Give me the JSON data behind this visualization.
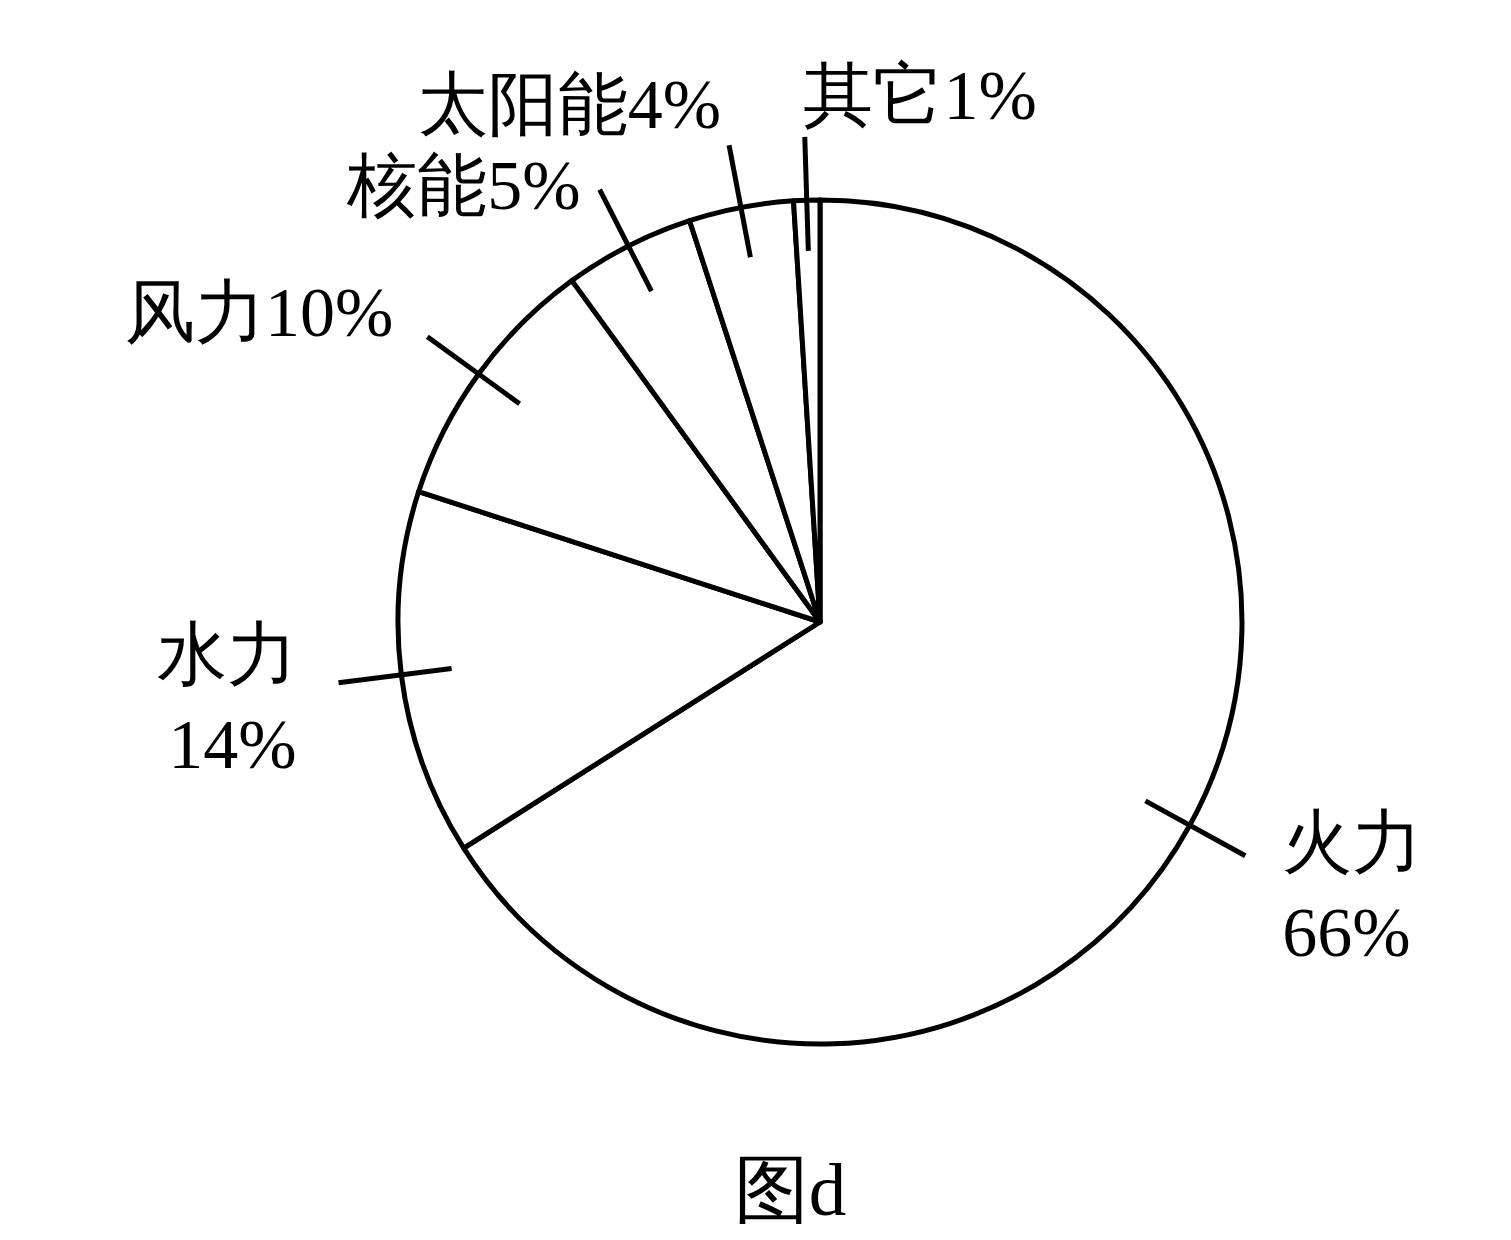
{
  "chart_data": {
    "type": "pie",
    "categories": [
      "火力",
      "水力",
      "风力",
      "核能",
      "太阳能",
      "其它"
    ],
    "values": [
      66,
      14,
      10,
      5,
      4,
      1
    ],
    "value_labels": [
      "66%",
      "14%",
      "10%",
      "5%",
      "4%",
      "1%"
    ],
    "colors": [
      "#ffffff",
      "#ffffff",
      "#ffffff",
      "#ffffff",
      "#ffffff",
      "#ffffff"
    ],
    "annotations": [
      "图d"
    ]
  }
}
